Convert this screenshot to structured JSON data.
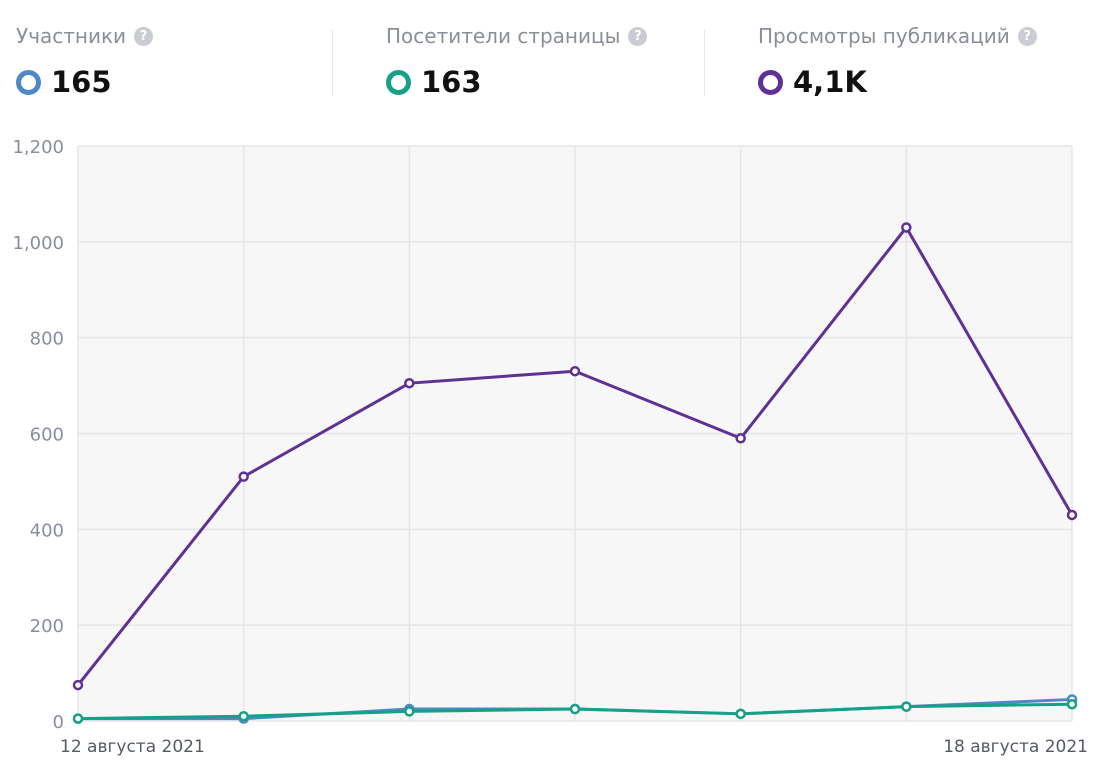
{
  "metrics": [
    {
      "label": "Участники",
      "value": "165",
      "color": "#4f87c7"
    },
    {
      "label": "Посетители страницы",
      "value": "163",
      "color": "#16a085"
    },
    {
      "label": "Просмотры публикаций",
      "value": "4,1K",
      "color": "#5f3193"
    }
  ],
  "icons": {
    "help": "help-question-icon",
    "series_marker": "ring-marker-icon"
  },
  "help_glyph": "?",
  "chart_data": {
    "type": "line",
    "x": [
      "12 августа 2021",
      "13 августа 2021",
      "14 августа 2021",
      "15 августа 2021",
      "16 августа 2021",
      "17 августа 2021",
      "18 августа 2021"
    ],
    "x_tick_labels": [
      "12 августа 2021",
      "18 августа 2021"
    ],
    "ylim": [
      0,
      1200
    ],
    "y_ticks": [
      0,
      200,
      400,
      600,
      800,
      1000,
      1200
    ],
    "y_tick_labels": [
      "0",
      "200",
      "400",
      "600",
      "800",
      "1,000",
      "1,200"
    ],
    "grid": true,
    "series": [
      {
        "name": "Участники",
        "color": "#4f87c7",
        "values": [
          5,
          5,
          25,
          25,
          15,
          30,
          45
        ]
      },
      {
        "name": "Посетители страницы",
        "color": "#16a085",
        "values": [
          5,
          10,
          20,
          25,
          15,
          30,
          35
        ]
      },
      {
        "name": "Просмотры публикаций",
        "color": "#5f3193",
        "values": [
          75,
          510,
          705,
          730,
          590,
          1030,
          430
        ]
      }
    ]
  }
}
